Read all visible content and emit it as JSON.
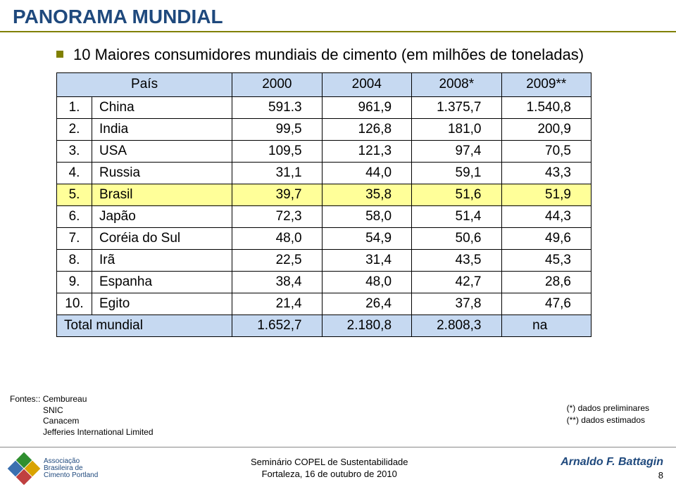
{
  "title": "PANORAMA MUNDIAL",
  "subtitle": "10 Maiores consumidores mundiais de cimento (em milhões de toneladas)",
  "table": {
    "headers": [
      "País",
      "2000",
      "2004",
      "2008*",
      "2009**"
    ],
    "rows": [
      {
        "n": "1.",
        "country": "China",
        "v": [
          "591.3",
          "961,9",
          "1.375,7",
          "1.540,8"
        ],
        "hl": false
      },
      {
        "n": "2.",
        "country": "India",
        "v": [
          "99,5",
          "126,8",
          "181,0",
          "200,9"
        ],
        "hl": false
      },
      {
        "n": "3.",
        "country": "USA",
        "v": [
          "109,5",
          "121,3",
          "97,4",
          "70,5"
        ],
        "hl": false
      },
      {
        "n": "4.",
        "country": "Russia",
        "v": [
          "31,1",
          "44,0",
          "59,1",
          "43,3"
        ],
        "hl": false
      },
      {
        "n": "5.",
        "country": "Brasil",
        "v": [
          "39,7",
          "35,8",
          "51,6",
          "51,9"
        ],
        "hl": true
      },
      {
        "n": "6.",
        "country": "Japão",
        "v": [
          "72,3",
          "58,0",
          "51,4",
          "44,3"
        ],
        "hl": false
      },
      {
        "n": "7.",
        "country": "Coréia do Sul",
        "v": [
          "48,0",
          "54,9",
          "50,6",
          "49,6"
        ],
        "hl": false
      },
      {
        "n": "8.",
        "country": "Irã",
        "v": [
          "22,5",
          "31,4",
          "43,5",
          "45,3"
        ],
        "hl": false
      },
      {
        "n": "9.",
        "country": "Espanha",
        "v": [
          "38,4",
          "48,0",
          "42,7",
          "28,6"
        ],
        "hl": false
      },
      {
        "n": "10.",
        "country": "Egito",
        "v": [
          "21,4",
          "26,4",
          "37,8",
          "47,6"
        ],
        "hl": false
      }
    ],
    "total_label": "Total mundial",
    "total": [
      "1.652,7",
      "2.180,8",
      "2.808,3",
      "na"
    ],
    "colors": {
      "header_bg": "#c6d9f1",
      "highlight_bg": "#ffff99",
      "total_bg": "#c6d9f1",
      "border": "#000000"
    }
  },
  "sources_label": "Fontes::",
  "sources": [
    "Cembureau",
    "SNIC",
    "Canacem",
    "Jefferies International Limited"
  ],
  "notes": [
    "(*)  dados preliminares",
    "(**) dados estimados"
  ],
  "footer": {
    "logo_text": [
      "Associação",
      "Brasileira de",
      "Cimento Portland"
    ],
    "center1": "Seminário COPEL de Sustentabilidade",
    "center2": "Fortaleza, 16 de outubro de 2010",
    "author": "Arnaldo F. Battagin",
    "page": "8"
  }
}
